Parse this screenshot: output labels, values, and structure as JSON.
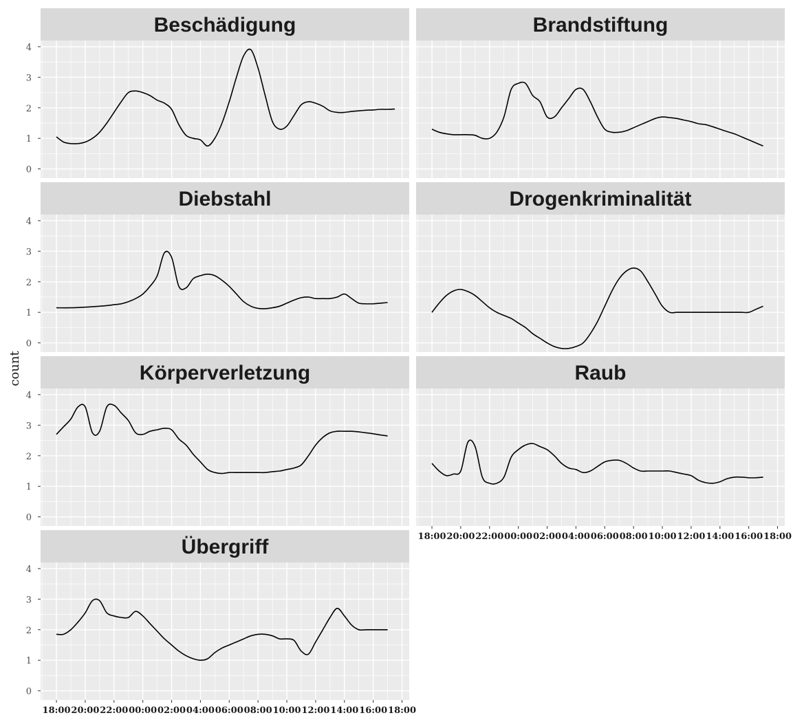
{
  "chart_data": {
    "type": "line",
    "layout": "facet_wrap",
    "ylabel": "count",
    "xlabel": "",
    "ylim": [
      -0.3,
      4.2
    ],
    "y_ticks": [
      0,
      1,
      2,
      3,
      4
    ],
    "x_tick_labels": [
      "18:00",
      "20:00",
      "22:00",
      "00:00",
      "02:00",
      "04:00",
      "06:00",
      "08:00",
      "10:00",
      "12:00",
      "14:00",
      "16:00",
      "18:00"
    ],
    "x_unit": "hour index (0 = 18:00, 24 = next day 18:00)",
    "x_range": [
      -1.1,
      24.5
    ],
    "grid": true,
    "colors": {
      "panel_bg": "#ebebeb",
      "strip_bg": "#d9d9d9",
      "grid": "#ffffff",
      "line": "#000000"
    },
    "facets": [
      {
        "name": "Beschädigung",
        "x": [
          0,
          0.5,
          1,
          1.5,
          2,
          2.5,
          3,
          3.5,
          4,
          4.5,
          5,
          5.5,
          6,
          6.5,
          7,
          7.5,
          8,
          8.5,
          9,
          9.5,
          10,
          10.5,
          11,
          11.5,
          12,
          12.5,
          13,
          13.5,
          14,
          14.5,
          15,
          15.5,
          16,
          16.5,
          17,
          17.5,
          18,
          18.5,
          19,
          19.5,
          20,
          20.5,
          21,
          21.5,
          22,
          22.5,
          23,
          23.5
        ],
        "values": [
          1.05,
          0.88,
          0.83,
          0.83,
          0.88,
          1.0,
          1.2,
          1.5,
          1.85,
          2.2,
          2.5,
          2.55,
          2.5,
          2.4,
          2.25,
          2.15,
          1.95,
          1.45,
          1.1,
          1.0,
          0.95,
          0.75,
          1.0,
          1.5,
          2.2,
          3.0,
          3.7,
          3.9,
          3.3,
          2.4,
          1.55,
          1.3,
          1.4,
          1.75,
          2.1,
          2.2,
          2.15,
          2.05,
          1.9,
          1.85,
          1.85,
          1.88,
          1.9,
          1.92,
          1.93,
          1.95,
          1.95,
          1.96
        ]
      },
      {
        "name": "Brandstiftung",
        "x": [
          0,
          0.5,
          1,
          1.5,
          2,
          2.5,
          3,
          3.5,
          4,
          4.5,
          5,
          5.5,
          6,
          6.5,
          7,
          7.5,
          8,
          8.5,
          9,
          9.5,
          10,
          10.5,
          11,
          11.5,
          12,
          12.5,
          13,
          13.5,
          14,
          14.5,
          15,
          15.5,
          16,
          16.5,
          17,
          17.5,
          18,
          18.5,
          19,
          19.5,
          20,
          20.5,
          21,
          21.5,
          22,
          22.5,
          23
        ],
        "values": [
          1.3,
          1.2,
          1.15,
          1.12,
          1.12,
          1.12,
          1.1,
          1.0,
          1.0,
          1.2,
          1.7,
          2.6,
          2.8,
          2.8,
          2.4,
          2.2,
          1.7,
          1.7,
          2.0,
          2.3,
          2.6,
          2.6,
          2.2,
          1.7,
          1.3,
          1.2,
          1.2,
          1.25,
          1.35,
          1.45,
          1.55,
          1.65,
          1.7,
          1.68,
          1.65,
          1.6,
          1.55,
          1.48,
          1.45,
          1.38,
          1.3,
          1.22,
          1.15,
          1.05,
          0.95,
          0.85,
          0.75
        ]
      },
      {
        "name": "Diebstahl",
        "x": [
          0,
          1,
          2,
          3,
          3.5,
          4,
          4.5,
          5,
          5.5,
          6,
          6.5,
          7,
          7.5,
          8,
          8.5,
          9,
          9.5,
          10,
          10.5,
          11,
          11.5,
          12,
          12.5,
          13,
          13.5,
          14,
          14.5,
          15,
          15.5,
          16,
          16.5,
          17,
          17.5,
          18,
          18.5,
          19,
          19.5,
          20,
          20.5,
          21,
          21.5,
          22,
          22.5,
          23
        ],
        "values": [
          1.15,
          1.15,
          1.17,
          1.2,
          1.22,
          1.25,
          1.28,
          1.35,
          1.45,
          1.6,
          1.85,
          2.2,
          2.95,
          2.8,
          1.85,
          1.8,
          2.1,
          2.2,
          2.25,
          2.2,
          2.05,
          1.85,
          1.6,
          1.35,
          1.2,
          1.13,
          1.12,
          1.15,
          1.2,
          1.3,
          1.4,
          1.48,
          1.5,
          1.45,
          1.45,
          1.45,
          1.5,
          1.6,
          1.45,
          1.3,
          1.28,
          1.28,
          1.3,
          1.32
        ]
      },
      {
        "name": "Drogenkriminalität",
        "x": [
          0,
          0.5,
          1,
          1.5,
          2,
          2.5,
          3,
          3.5,
          4,
          4.5,
          5,
          5.5,
          6,
          6.5,
          7,
          7.5,
          8,
          8.5,
          9,
          9.5,
          10,
          10.5,
          11,
          11.5,
          12,
          12.5,
          13,
          13.5,
          14,
          14.5,
          15,
          15.5,
          16,
          16.5,
          17,
          17.5,
          18,
          18.5,
          19,
          19.5,
          20,
          20.5,
          21,
          21.5,
          22,
          22.5,
          23
        ],
        "values": [
          1.0,
          1.3,
          1.55,
          1.7,
          1.75,
          1.68,
          1.55,
          1.35,
          1.15,
          1.0,
          0.9,
          0.8,
          0.65,
          0.5,
          0.3,
          0.15,
          0.0,
          -0.12,
          -0.18,
          -0.18,
          -0.12,
          0.0,
          0.3,
          0.7,
          1.2,
          1.7,
          2.1,
          2.35,
          2.45,
          2.35,
          2.0,
          1.6,
          1.2,
          1.0,
          1.0,
          1.0,
          1.0,
          1.0,
          1.0,
          1.0,
          1.0,
          1.0,
          1.0,
          1.0,
          1.0,
          1.1,
          1.2
        ]
      },
      {
        "name": "Körperverletzung",
        "x": [
          0,
          0.5,
          1,
          1.5,
          2,
          2.5,
          3,
          3.5,
          4,
          4.5,
          5,
          5.5,
          6,
          6.5,
          7,
          7.5,
          8,
          8.5,
          9,
          9.5,
          10,
          10.5,
          11,
          11.5,
          12,
          12.5,
          13,
          13.5,
          14,
          14.5,
          15,
          15.5,
          16,
          16.5,
          17,
          17.5,
          18,
          18.5,
          19,
          19.5,
          20,
          20.5,
          21,
          21.5,
          22,
          22.5,
          23
        ],
        "values": [
          2.7,
          2.95,
          3.2,
          3.6,
          3.6,
          2.75,
          2.8,
          3.6,
          3.65,
          3.4,
          3.15,
          2.75,
          2.7,
          2.8,
          2.85,
          2.9,
          2.85,
          2.55,
          2.35,
          2.05,
          1.8,
          1.55,
          1.45,
          1.42,
          1.45,
          1.45,
          1.45,
          1.45,
          1.45,
          1.45,
          1.48,
          1.5,
          1.55,
          1.6,
          1.7,
          2.0,
          2.35,
          2.6,
          2.75,
          2.8,
          2.8,
          2.8,
          2.78,
          2.75,
          2.72,
          2.68,
          2.65
        ]
      },
      {
        "name": "Raub",
        "x": [
          0,
          0.5,
          1,
          1.5,
          2,
          2.5,
          3,
          3.5,
          4,
          4.5,
          5,
          5.5,
          6,
          6.5,
          7,
          7.5,
          8,
          8.5,
          9,
          9.5,
          10,
          10.5,
          11,
          11.5,
          12,
          12.5,
          13,
          13.5,
          14,
          14.5,
          15,
          15.5,
          16,
          16.5,
          17,
          17.5,
          18,
          18.5,
          19,
          19.5,
          20,
          20.5,
          21,
          21.5,
          22,
          22.5,
          23
        ],
        "values": [
          1.75,
          1.5,
          1.35,
          1.4,
          1.5,
          2.45,
          2.3,
          1.3,
          1.1,
          1.1,
          1.3,
          1.95,
          2.2,
          2.35,
          2.4,
          2.3,
          2.2,
          2.0,
          1.75,
          1.6,
          1.55,
          1.45,
          1.5,
          1.65,
          1.8,
          1.85,
          1.85,
          1.75,
          1.6,
          1.5,
          1.5,
          1.5,
          1.5,
          1.5,
          1.45,
          1.4,
          1.35,
          1.2,
          1.12,
          1.1,
          1.15,
          1.25,
          1.3,
          1.3,
          1.28,
          1.28,
          1.3
        ]
      },
      {
        "name": "Übergriff",
        "x": [
          0,
          0.5,
          1,
          1.5,
          2,
          2.5,
          3,
          3.5,
          4,
          4.5,
          5,
          5.5,
          6,
          6.5,
          7,
          7.5,
          8,
          8.5,
          9,
          9.5,
          10,
          10.5,
          11,
          11.5,
          12,
          12.5,
          13,
          13.5,
          14,
          14.5,
          15,
          15.5,
          16,
          16.5,
          17,
          17.5,
          18,
          18.5,
          19,
          19.5,
          20,
          20.5,
          21,
          21.5,
          22,
          22.5,
          23
        ],
        "values": [
          1.85,
          1.85,
          2.0,
          2.25,
          2.55,
          2.95,
          2.95,
          2.55,
          2.45,
          2.4,
          2.4,
          2.6,
          2.45,
          2.2,
          1.95,
          1.7,
          1.5,
          1.3,
          1.15,
          1.05,
          1.0,
          1.05,
          1.25,
          1.4,
          1.5,
          1.6,
          1.7,
          1.8,
          1.85,
          1.85,
          1.8,
          1.7,
          1.7,
          1.65,
          1.3,
          1.2,
          1.6,
          2.0,
          2.4,
          2.7,
          2.45,
          2.15,
          2.0,
          2.0,
          2.0,
          2.0,
          2.0
        ]
      }
    ]
  }
}
